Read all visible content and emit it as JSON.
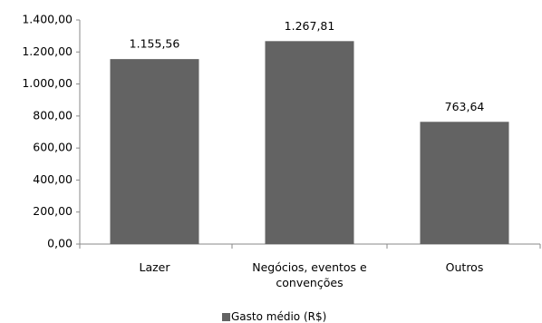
{
  "chart_data": {
    "type": "bar",
    "categories": [
      "Lazer",
      "Negócios, eventos e convenções",
      "Outros"
    ],
    "series": [
      {
        "name": "Gasto médio (R$)",
        "color": "#636363",
        "values": [
          1155.56,
          1267.81,
          763.64
        ],
        "value_labels": [
          "1.155,56",
          "1.267,81",
          "763,64"
        ]
      }
    ],
    "ylim": [
      0,
      1400
    ],
    "yticks": [
      {
        "value": 0,
        "label": "0,00"
      },
      {
        "value": 200,
        "label": "200,00"
      },
      {
        "value": 400,
        "label": "400,00"
      },
      {
        "value": 600,
        "label": "600,00"
      },
      {
        "value": 800,
        "label": "800,00"
      },
      {
        "value": 1000,
        "label": "1.000,00"
      },
      {
        "value": 1200,
        "label": "1.200,00"
      },
      {
        "value": 1400,
        "label": "1.400,00"
      }
    ],
    "grid": false,
    "legend": "bottom"
  }
}
